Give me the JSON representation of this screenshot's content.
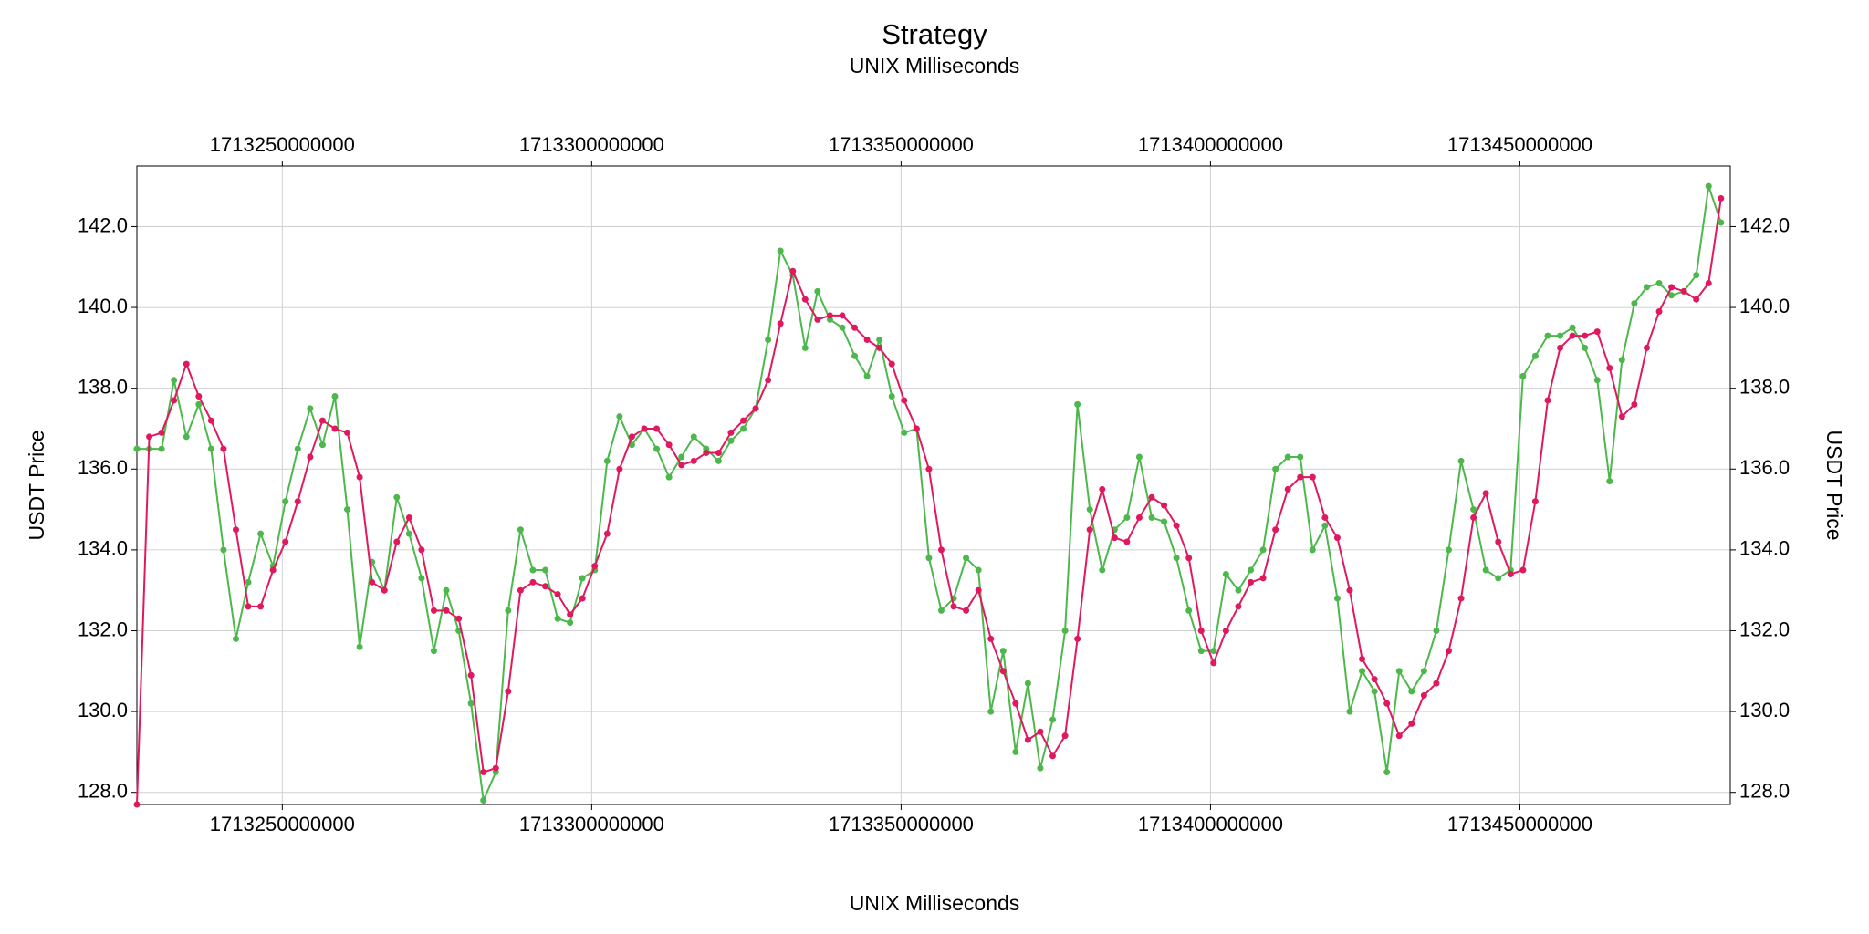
{
  "chart_data": {
    "type": "line",
    "title": "Strategy",
    "x_label_top": "UNIX Milliseconds",
    "x_label": "UNIX Milliseconds",
    "y_label": "USDT Price",
    "y2_label": "USDT Price",
    "xlim": [
      1713226500000,
      1713484000000
    ],
    "xticks": [
      1713250000000,
      1713300000000,
      1713350000000,
      1713400000000,
      1713450000000
    ],
    "ylim": [
      127.7,
      143.5
    ],
    "yticks": [
      {
        "value": 128,
        "label": "128.0"
      },
      {
        "value": 130,
        "label": "130.0"
      },
      {
        "value": 132,
        "label": "132.0"
      },
      {
        "value": 134,
        "label": "134.0"
      },
      {
        "value": 136,
        "label": "136.0"
      },
      {
        "value": 138,
        "label": "138.0"
      },
      {
        "value": 140,
        "label": "140.0"
      },
      {
        "value": 142,
        "label": "142.0"
      }
    ],
    "y2lim": [
      127.7,
      143.5
    ],
    "y2ticks": [
      {
        "value": 128,
        "label": "128.0"
      },
      {
        "value": 130,
        "label": "130.0"
      },
      {
        "value": 132,
        "label": "132.0"
      },
      {
        "value": 134,
        "label": "134.0"
      },
      {
        "value": 136,
        "label": "136.0"
      },
      {
        "value": 138,
        "label": "138.0"
      },
      {
        "value": 140,
        "label": "140.0"
      },
      {
        "value": 142,
        "label": "142.0"
      }
    ],
    "grid": true,
    "x": [
      1713226500000,
      1713228500000,
      1713230500000,
      1713232500000,
      1713234500000,
      1713236500000,
      1713238500000,
      1713240500000,
      1713242500000,
      1713244500000,
      1713246500000,
      1713248500000,
      1713250500000,
      1713252500000,
      1713254500000,
      1713256500000,
      1713258500000,
      1713260500000,
      1713262500000,
      1713264500000,
      1713266500000,
      1713268500000,
      1713270500000,
      1713272500000,
      1713274500000,
      1713276500000,
      1713278500000,
      1713280500000,
      1713282500000,
      1713284500000,
      1713286500000,
      1713288500000,
      1713290500000,
      1713292500000,
      1713294500000,
      1713296500000,
      1713298500000,
      1713300500000,
      1713302500000,
      1713304500000,
      1713306500000,
      1713308500000,
      1713310500000,
      1713312500000,
      1713314500000,
      1713316500000,
      1713318500000,
      1713320500000,
      1713322500000,
      1713324500000,
      1713326500000,
      1713328500000,
      1713330500000,
      1713332500000,
      1713334500000,
      1713336500000,
      1713338500000,
      1713340500000,
      1713342500000,
      1713344500000,
      1713346500000,
      1713348500000,
      1713350500000,
      1713352500000,
      1713354500000,
      1713356500000,
      1713358500000,
      1713360500000,
      1713362500000,
      1713364500000,
      1713366500000,
      1713368500000,
      1713370500000,
      1713372500000,
      1713374500000,
      1713376500000,
      1713378500000,
      1713380500000,
      1713382500000,
      1713384500000,
      1713386500000,
      1713388500000,
      1713390500000,
      1713392500000,
      1713394500000,
      1713396500000,
      1713398500000,
      1713400500000,
      1713402500000,
      1713404500000,
      1713406500000,
      1713408500000,
      1713410500000,
      1713412500000,
      1713414500000,
      1713416500000,
      1713418500000,
      1713420500000,
      1713422500000,
      1713424500000,
      1713426500000,
      1713428500000,
      1713430500000,
      1713432500000,
      1713434500000,
      1713436500000,
      1713438500000,
      1713440500000,
      1713442500000,
      1713444500000,
      1713446500000,
      1713448500000,
      1713450500000,
      1713452500000,
      1713454500000,
      1713456500000,
      1713458500000,
      1713460500000,
      1713462500000,
      1713464500000,
      1713466500000,
      1713468500000,
      1713470500000,
      1713472500000,
      1713474500000,
      1713476500000,
      1713478500000,
      1713480500000,
      1713482500000
    ],
    "series": [
      {
        "color": "#4cb84c",
        "values": [
          136.5,
          136.5,
          136.5,
          138.2,
          136.8,
          137.6,
          136.5,
          134.0,
          131.8,
          133.2,
          134.4,
          133.6,
          135.2,
          136.5,
          137.5,
          136.6,
          137.8,
          135.0,
          131.6,
          133.7,
          133.0,
          135.3,
          134.4,
          133.3,
          131.5,
          133.0,
          132.0,
          130.2,
          127.8,
          128.5,
          132.5,
          134.5,
          133.5,
          133.5,
          132.3,
          132.2,
          133.3,
          133.5,
          136.2,
          137.3,
          136.6,
          137.0,
          136.5,
          135.8,
          136.3,
          136.8,
          136.5,
          136.2,
          136.7,
          137.0,
          137.5,
          139.2,
          141.4,
          140.8,
          139.0,
          140.4,
          139.7,
          139.5,
          138.8,
          138.3,
          139.2,
          137.8,
          136.9,
          137.0,
          133.8,
          132.5,
          132.8,
          133.8,
          133.5,
          130.0,
          131.5,
          129.0,
          130.7,
          128.6,
          129.8,
          132.0,
          137.6,
          135.0,
          133.5,
          134.5,
          134.8,
          136.3,
          134.8,
          134.7,
          133.8,
          132.5,
          131.5,
          131.5,
          133.4,
          133.0,
          133.5,
          134.0,
          136.0,
          136.3,
          136.3,
          134.0,
          134.6,
          132.8,
          130.0,
          131.0,
          130.5,
          128.5,
          131.0,
          130.5,
          131.0,
          132.0,
          134.0,
          136.2,
          135.0,
          133.5,
          133.3,
          133.5,
          138.3,
          138.8,
          139.3,
          139.3,
          139.5,
          139.0,
          138.2,
          135.7,
          138.7,
          140.1,
          140.5,
          140.6,
          140.3,
          140.4,
          140.8,
          143.0,
          142.1
        ]
      },
      {
        "color": "#e0195e",
        "values": [
          127.7,
          136.8,
          136.9,
          137.7,
          138.6,
          137.8,
          137.2,
          136.5,
          134.5,
          132.6,
          132.6,
          133.5,
          134.2,
          135.2,
          136.3,
          137.2,
          137.0,
          136.9,
          135.8,
          133.2,
          133.0,
          134.2,
          134.8,
          134.0,
          132.5,
          132.5,
          132.3,
          130.9,
          128.5,
          128.6,
          130.5,
          133.0,
          133.2,
          133.1,
          132.9,
          132.4,
          132.8,
          133.6,
          134.4,
          136.0,
          136.8,
          137.0,
          137.0,
          136.6,
          136.1,
          136.2,
          136.4,
          136.4,
          136.9,
          137.2,
          137.5,
          138.2,
          139.6,
          140.9,
          140.2,
          139.7,
          139.8,
          139.8,
          139.5,
          139.2,
          139.0,
          138.6,
          137.7,
          137.0,
          136.0,
          134.0,
          132.6,
          132.5,
          133.0,
          131.8,
          131.0,
          130.2,
          129.3,
          129.5,
          128.9,
          129.4,
          131.8,
          134.5,
          135.5,
          134.3,
          134.2,
          134.8,
          135.3,
          135.1,
          134.6,
          133.8,
          132.0,
          131.2,
          132.0,
          132.6,
          133.2,
          133.3,
          134.5,
          135.5,
          135.8,
          135.8,
          134.8,
          134.3,
          133.0,
          131.3,
          130.8,
          130.2,
          129.4,
          129.7,
          130.4,
          130.7,
          131.5,
          132.8,
          134.8,
          135.4,
          134.2,
          133.4,
          133.5,
          135.2,
          137.7,
          139.0,
          139.3,
          139.3,
          139.4,
          138.5,
          137.3,
          137.6,
          139.0,
          139.9,
          140.5,
          140.4,
          140.2,
          140.6,
          142.7
        ]
      }
    ]
  }
}
